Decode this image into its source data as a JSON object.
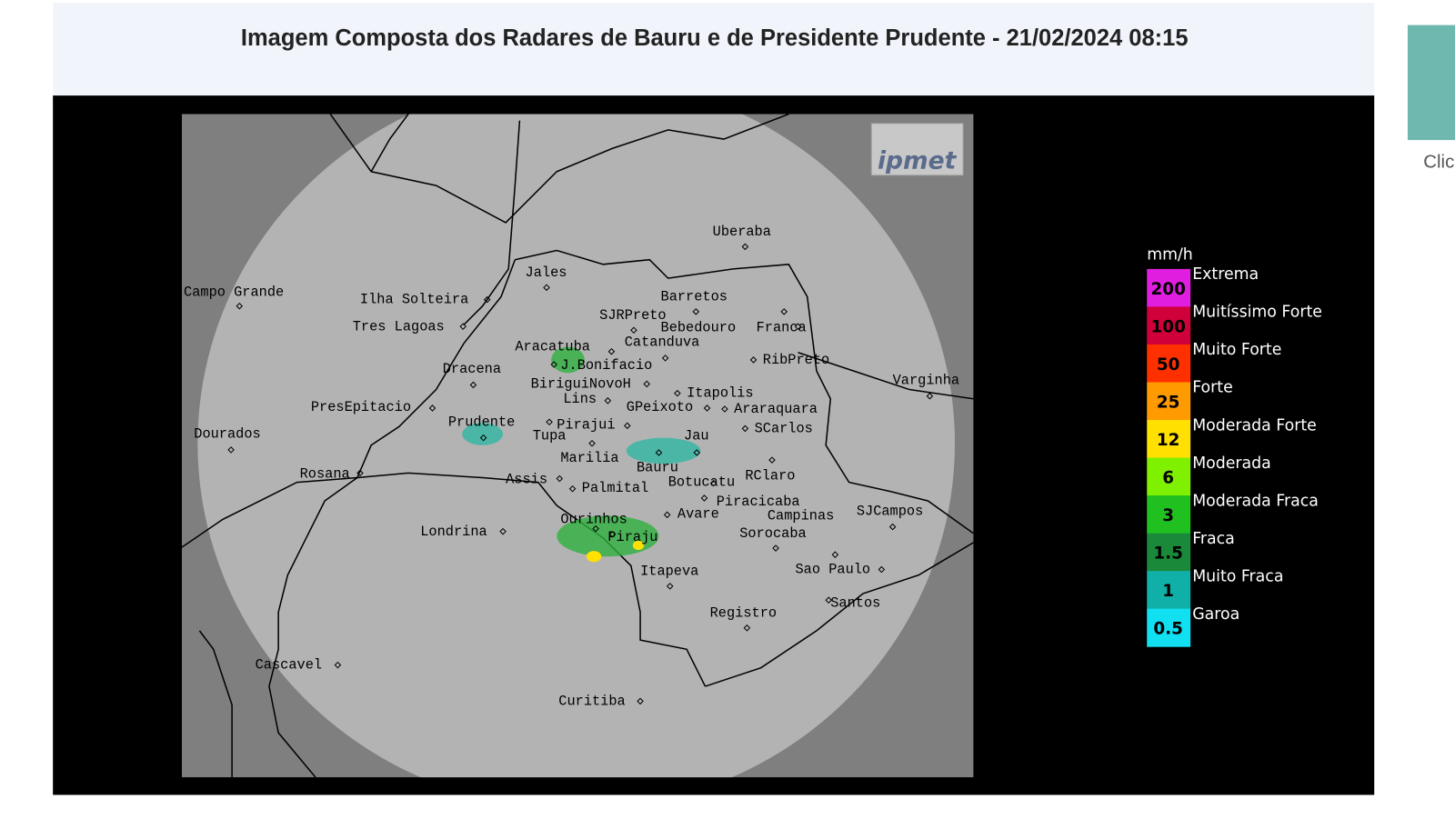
{
  "header": {
    "title": "Imagem Composta dos Radares de Bauru e de Presidente Prudente - 21/02/2024 08:15"
  },
  "map": {
    "logo": "ipmet",
    "cities": [
      "Uberaba",
      "Jales",
      "Campo Grande",
      "Ilha Solteira",
      "Barretos",
      "SJRPreto",
      "Bebedouro",
      "Franca",
      "Tres Lagoas",
      "Catanduva",
      "Aracatuba",
      "J.Bonifacio",
      "RibPreto",
      "Dracena",
      "Varginha",
      "BiriguiNovoH",
      "Itapolis",
      "Lins",
      "GPeixoto",
      "Araraquara",
      "PresEpitacio",
      "Prudente",
      "Pirajui",
      "SCarlos",
      "Tupa",
      "Jau",
      "Dourados",
      "Marilia",
      "Bauru",
      "RClaro",
      "Botucatu",
      "Rosana",
      "Assis",
      "Palmital",
      "Piracicaba",
      "Campinas",
      "SJCampos",
      "Ourinhos",
      "Avare",
      "Londrina",
      "Sorocaba",
      "Piraju",
      "Itapeva",
      "Sao Paulo",
      "Santos",
      "Registro",
      "Cascavel",
      "Curitiba"
    ]
  },
  "legend": {
    "unit": "mm/h",
    "levels": [
      {
        "value": 200,
        "label": "Extrema",
        "color": "#e01ee0"
      },
      {
        "value": 100,
        "label": "Muitíssimo Forte",
        "color": "#d0003a"
      },
      {
        "value": 50,
        "label": "Muito Forte",
        "color": "#ff3000"
      },
      {
        "value": 25,
        "label": "Forte",
        "color": "#ff9a00"
      },
      {
        "value": 12,
        "label": "Moderada Forte",
        "color": "#ffe000"
      },
      {
        "value": 6,
        "label": "Moderada",
        "color": "#7ef000"
      },
      {
        "value": 3,
        "label": "Moderada Fraca",
        "color": "#20c020"
      },
      {
        "value": 1.5,
        "label": "Fraca",
        "color": "#1a8a3a"
      },
      {
        "value": 1,
        "label": "Muito Fraca",
        "color": "#10b0a8"
      },
      {
        "value": 0.5,
        "label": "Garoa",
        "color": "#10e0f0"
      }
    ]
  },
  "sidebar": {
    "link_text": "Clic"
  }
}
